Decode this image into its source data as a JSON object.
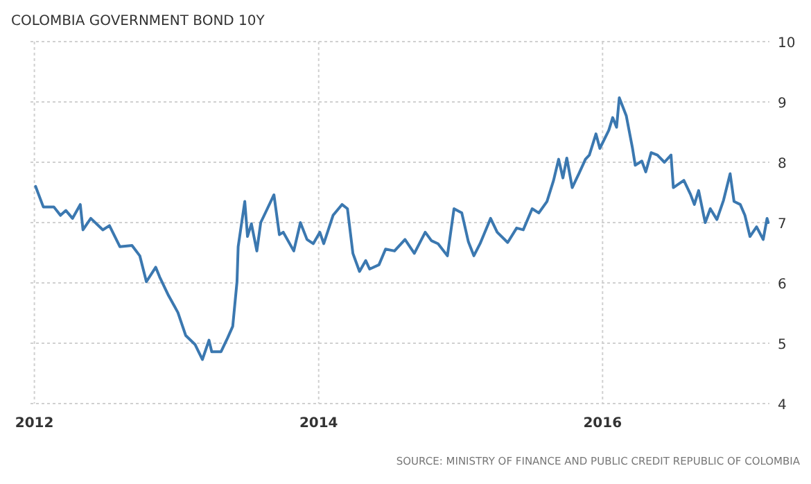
{
  "chart_data": {
    "type": "line",
    "title": "COLOMBIA GOVERNMENT BOND 10Y",
    "x": [
      "2012-01-04",
      "2012-01-24",
      "2012-02-20",
      "2012-03-08",
      "2012-03-22",
      "2012-04-08",
      "2012-04-28",
      "2012-05-05",
      "2012-05-25",
      "2012-06-25",
      "2012-07-12",
      "2012-08-08",
      "2012-09-08",
      "2012-09-28",
      "2012-10-15",
      "2012-11-08",
      "2012-11-18",
      "2012-12-11",
      "2013-01-04",
      "2013-01-24",
      "2013-02-17",
      "2013-03-08",
      "2013-03-25",
      "2013-04-01",
      "2013-04-25",
      "2013-05-12",
      "2013-05-25",
      "2013-06-05",
      "2013-06-08",
      "2013-06-25",
      "2013-07-02",
      "2013-07-12",
      "2013-07-26",
      "2013-08-05",
      "2013-08-22",
      "2013-09-08",
      "2013-09-22",
      "2013-10-02",
      "2013-10-29",
      "2013-11-15",
      "2013-12-02",
      "2013-12-18",
      "2014-01-04",
      "2014-01-14",
      "2014-02-07",
      "2014-03-02",
      "2014-03-16",
      "2014-03-30",
      "2014-04-16",
      "2014-05-02",
      "2014-05-12",
      "2014-06-05",
      "2014-06-22",
      "2014-07-15",
      "2014-08-11",
      "2014-09-04",
      "2014-10-02",
      "2014-10-18",
      "2014-11-04",
      "2014-11-28",
      "2014-12-15",
      "2015-01-04",
      "2015-01-21",
      "2015-02-04",
      "2015-02-20",
      "2015-03-19",
      "2015-04-05",
      "2015-05-02",
      "2015-05-25",
      "2015-06-11",
      "2015-07-04",
      "2015-07-21",
      "2015-08-11",
      "2015-08-28",
      "2015-09-10",
      "2015-09-21",
      "2015-10-01",
      "2015-10-15",
      "2015-11-01",
      "2015-11-18",
      "2015-11-28",
      "2015-12-15",
      "2015-12-25",
      "2016-01-17",
      "2016-01-27",
      "2016-02-06",
      "2016-02-13",
      "2016-03-02",
      "2016-03-18",
      "2016-03-25",
      "2016-04-11",
      "2016-04-21",
      "2016-05-05",
      "2016-05-21",
      "2016-06-08",
      "2016-06-25",
      "2016-07-01",
      "2016-07-28",
      "2016-08-14",
      "2016-08-24",
      "2016-09-04",
      "2016-09-17",
      "2016-09-21",
      "2016-10-04",
      "2016-10-21",
      "2016-11-07",
      "2016-11-24",
      "2016-12-04",
      "2016-12-20",
      "2017-01-01",
      "2017-01-14",
      "2017-01-31",
      "2017-02-17",
      "2017-02-27",
      "2017-03-02"
    ],
    "series": [
      {
        "color": "#3b78b0",
        "values": [
          7.6,
          7.26,
          7.26,
          7.12,
          7.2,
          7.07,
          7.3,
          6.88,
          7.07,
          6.88,
          6.95,
          6.6,
          6.62,
          6.45,
          6.02,
          6.26,
          6.1,
          5.79,
          5.51,
          5.13,
          4.98,
          4.73,
          5.05,
          4.86,
          4.86,
          5.09,
          5.28,
          6.02,
          6.6,
          7.35,
          6.77,
          6.98,
          6.53,
          7.0,
          7.23,
          7.46,
          6.8,
          6.84,
          6.53,
          7.0,
          6.72,
          6.65,
          6.84,
          6.65,
          7.12,
          7.3,
          7.23,
          6.49,
          6.19,
          6.37,
          6.23,
          6.3,
          6.56,
          6.53,
          6.72,
          6.49,
          6.84,
          6.7,
          6.65,
          6.45,
          7.23,
          7.16,
          6.68,
          6.45,
          6.65,
          7.07,
          6.84,
          6.67,
          6.91,
          6.88,
          7.23,
          7.16,
          7.35,
          7.7,
          8.05,
          7.74,
          8.07,
          7.58,
          7.81,
          8.05,
          8.12,
          8.47,
          8.23,
          8.53,
          8.74,
          8.58,
          9.07,
          8.77,
          8.23,
          7.95,
          8.02,
          7.84,
          8.16,
          8.12,
          8.0,
          8.12,
          7.58,
          7.7,
          7.47,
          7.3,
          7.53,
          7.12,
          7.0,
          7.23,
          7.05,
          7.37,
          7.81,
          7.35,
          7.3,
          7.12,
          6.77,
          6.93,
          6.72,
          7.07,
          7.0
        ]
      }
    ],
    "xlim": [
      "2011-12-22",
      "2017-03-05"
    ],
    "xticks": [
      {
        "value": "2012-01-01",
        "label": "2012"
      },
      {
        "value": "2014-01-01",
        "label": "2014"
      },
      {
        "value": "2016-01-01",
        "label": "2016"
      }
    ],
    "ylim": [
      4,
      10
    ],
    "yticks": [
      4,
      5,
      6,
      7,
      8,
      9,
      10
    ],
    "grid": true,
    "annotations": [
      "SOURCE: MINISTRY OF FINANCE AND PUBLIC CREDIT REPUBLIC OF COLOMBIA"
    ]
  }
}
